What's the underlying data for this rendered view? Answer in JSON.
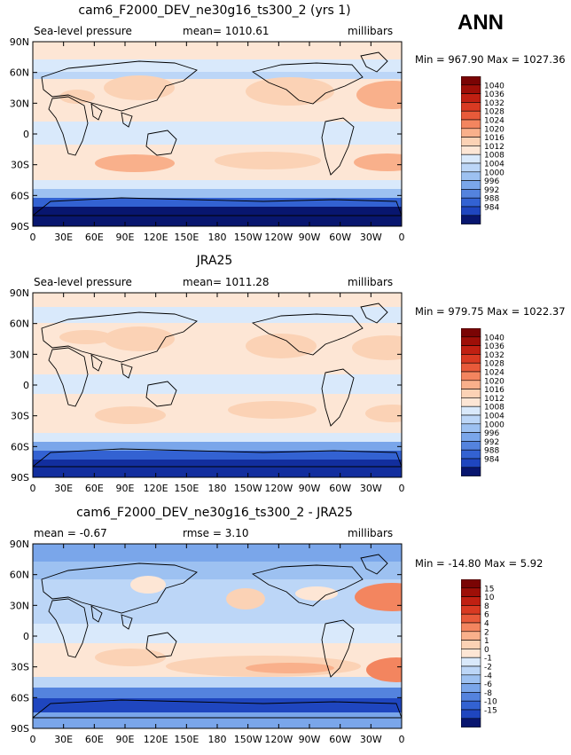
{
  "season": "ANN",
  "colors": {
    "scale_pos": [
      "#fde6d5",
      "#fbd2b5",
      "#f9b08b",
      "#f3855f",
      "#e85a3a",
      "#d93a22",
      "#c02012",
      "#9e0f08",
      "#7a0404"
    ],
    "scale_neg": [
      "#d9e9fb",
      "#bcd6f7",
      "#9dc1f1",
      "#7aa6ea",
      "#5483de",
      "#3362d2",
      "#1f46bf",
      "#122e9e",
      "#08166f"
    ]
  },
  "chart_data": [
    {
      "type": "heatmap",
      "title": "cam6_F2000_DEV_ne30g16_ts300_2 (yrs 1)",
      "variable": "Sea-level pressure",
      "mean_text": "mean=  1010.61",
      "units": "millibars",
      "stats": "Min = 967.90 Max = 1027.36",
      "colorbar_labels": [
        "1040",
        "1036",
        "1032",
        "1028",
        "1024",
        "1020",
        "1016",
        "1012",
        "1008",
        "1004",
        "1000",
        "996",
        "992",
        "988",
        "984"
      ],
      "xticks": [
        "0",
        "30E",
        "60E",
        "90E",
        "120E",
        "150E",
        "180",
        "150W",
        "120W",
        "90W",
        "60W",
        "30W",
        "0"
      ],
      "yticks": [
        "90N",
        "60N",
        "30N",
        "0",
        "30S",
        "60S",
        "90S"
      ]
    },
    {
      "type": "heatmap",
      "title": "JRA25",
      "variable": "Sea-level pressure",
      "mean_text": "mean=  1011.28",
      "units": "millibars",
      "stats": "Min = 979.75 Max = 1022.37",
      "colorbar_labels": [
        "1040",
        "1036",
        "1032",
        "1028",
        "1024",
        "1020",
        "1016",
        "1012",
        "1008",
        "1004",
        "1000",
        "996",
        "992",
        "988",
        "984"
      ],
      "xticks": [
        "0",
        "30E",
        "60E",
        "90E",
        "120E",
        "150E",
        "180",
        "150W",
        "120W",
        "90W",
        "60W",
        "30W",
        "0"
      ],
      "yticks": [
        "90N",
        "60N",
        "30N",
        "0",
        "30S",
        "60S",
        "90S"
      ]
    },
    {
      "type": "heatmap",
      "title": "cam6_F2000_DEV_ne30g16_ts300_2 - JRA25",
      "variable": "mean =   -0.67",
      "mean_text": "rmse =    3.10",
      "units": "millibars",
      "stats": "Min = -14.80 Max =    5.92",
      "colorbar_labels": [
        "15",
        "10",
        "8",
        "6",
        "4",
        "2",
        "1",
        "0",
        "-1",
        "-2",
        "-4",
        "-6",
        "-8",
        "-10",
        "-15"
      ],
      "xticks": [
        "0",
        "30E",
        "60E",
        "90E",
        "120E",
        "150E",
        "180",
        "150W",
        "120W",
        "90W",
        "60W",
        "30W",
        "0"
      ],
      "yticks": [
        "90N",
        "60N",
        "30N",
        "0",
        "30S",
        "60S",
        "90S"
      ]
    }
  ]
}
